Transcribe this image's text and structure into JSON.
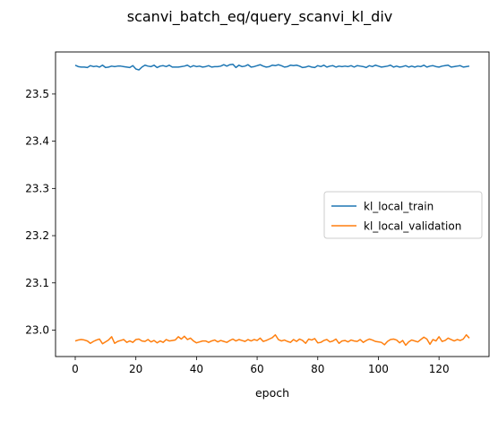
{
  "chart_data": {
    "type": "line",
    "title": "scanvi_batch_eq/query_scanvi_kl_div",
    "xlabel": "epoch",
    "ylabel": "",
    "xlim": [
      -6.5,
      136.5
    ],
    "ylim": [
      22.944,
      23.589
    ],
    "xticks": [
      0,
      20,
      40,
      60,
      80,
      100,
      120
    ],
    "yticks": [
      23.0,
      23.1,
      23.2,
      23.3,
      23.4,
      23.5
    ],
    "ytick_labels": [
      "23.0",
      "23.1",
      "23.2",
      "23.3",
      "23.4",
      "23.5"
    ],
    "grid": false,
    "legend_position": "center-right",
    "x": [
      0,
      1,
      2,
      3,
      4,
      5,
      6,
      7,
      8,
      9,
      10,
      11,
      12,
      13,
      14,
      15,
      16,
      17,
      18,
      19,
      20,
      21,
      22,
      23,
      24,
      25,
      26,
      27,
      28,
      29,
      30,
      31,
      32,
      33,
      34,
      35,
      36,
      37,
      38,
      39,
      40,
      41,
      42,
      43,
      44,
      45,
      46,
      47,
      48,
      49,
      50,
      51,
      52,
      53,
      54,
      55,
      56,
      57,
      58,
      59,
      60,
      61,
      62,
      63,
      64,
      65,
      66,
      67,
      68,
      69,
      70,
      71,
      72,
      73,
      74,
      75,
      76,
      77,
      78,
      79,
      80,
      81,
      82,
      83,
      84,
      85,
      86,
      87,
      88,
      89,
      90,
      91,
      92,
      93,
      94,
      95,
      96,
      97,
      98,
      99,
      100,
      101,
      102,
      103,
      104,
      105,
      106,
      107,
      108,
      109,
      110,
      111,
      112,
      113,
      114,
      115,
      116,
      117,
      118,
      119,
      120,
      121,
      122,
      123,
      124,
      125,
      126,
      127,
      128,
      129,
      130
    ],
    "series": [
      {
        "name": "kl_local_train",
        "color": "#1f77b4",
        "values": [
          23.561,
          23.558,
          23.557,
          23.557,
          23.556,
          23.56,
          23.558,
          23.559,
          23.557,
          23.561,
          23.556,
          23.557,
          23.559,
          23.558,
          23.559,
          23.559,
          23.558,
          23.557,
          23.556,
          23.56,
          23.553,
          23.551,
          23.557,
          23.561,
          23.559,
          23.558,
          23.561,
          23.556,
          23.559,
          23.56,
          23.558,
          23.561,
          23.557,
          23.557,
          23.557,
          23.558,
          23.559,
          23.561,
          23.557,
          23.56,
          23.558,
          23.559,
          23.557,
          23.558,
          23.56,
          23.557,
          23.558,
          23.558,
          23.559,
          23.562,
          23.559,
          23.562,
          23.563,
          23.556,
          23.561,
          23.558,
          23.559,
          23.562,
          23.557,
          23.558,
          23.56,
          23.562,
          23.559,
          23.557,
          23.558,
          23.561,
          23.56,
          23.562,
          23.56,
          23.557,
          23.558,
          23.561,
          23.56,
          23.561,
          23.559,
          23.556,
          23.557,
          23.559,
          23.557,
          23.556,
          23.56,
          23.558,
          23.561,
          23.557,
          23.559,
          23.56,
          23.557,
          23.559,
          23.558,
          23.559,
          23.558,
          23.56,
          23.557,
          23.56,
          23.559,
          23.558,
          23.556,
          23.56,
          23.558,
          23.561,
          23.559,
          23.557,
          23.558,
          23.559,
          23.561,
          23.557,
          23.559,
          23.557,
          23.558,
          23.56,
          23.557,
          23.559,
          23.557,
          23.559,
          23.558,
          23.561,
          23.557,
          23.559,
          23.56,
          23.558,
          23.557,
          23.559,
          23.56,
          23.561,
          23.557,
          23.558,
          23.559,
          23.56,
          23.557,
          23.558,
          23.559
        ]
      },
      {
        "name": "kl_local_validation",
        "color": "#ff7f0e",
        "values": [
          22.977,
          22.979,
          22.98,
          22.979,
          22.977,
          22.972,
          22.976,
          22.979,
          22.981,
          22.971,
          22.975,
          22.979,
          22.986,
          22.972,
          22.976,
          22.978,
          22.98,
          22.974,
          22.977,
          22.974,
          22.98,
          22.981,
          22.977,
          22.976,
          22.98,
          22.975,
          22.978,
          22.973,
          22.977,
          22.974,
          22.98,
          22.977,
          22.978,
          22.979,
          22.986,
          22.981,
          22.987,
          22.98,
          22.983,
          22.977,
          22.973,
          22.975,
          22.977,
          22.977,
          22.974,
          22.977,
          22.979,
          22.975,
          22.978,
          22.976,
          22.974,
          22.978,
          22.981,
          22.977,
          22.98,
          22.978,
          22.976,
          22.98,
          22.977,
          22.98,
          22.978,
          22.983,
          22.976,
          22.978,
          22.981,
          22.984,
          22.99,
          22.98,
          22.977,
          22.979,
          22.976,
          22.974,
          22.98,
          22.976,
          22.981,
          22.978,
          22.972,
          22.981,
          22.979,
          22.982,
          22.973,
          22.974,
          22.978,
          22.98,
          22.975,
          22.977,
          22.981,
          22.972,
          22.977,
          22.978,
          22.975,
          22.979,
          22.977,
          22.976,
          22.98,
          22.974,
          22.978,
          22.981,
          22.979,
          22.976,
          22.975,
          22.974,
          22.969,
          22.976,
          22.98,
          22.981,
          22.979,
          22.973,
          22.978,
          22.968,
          22.975,
          22.979,
          22.977,
          22.975,
          22.98,
          22.985,
          22.981,
          22.97,
          22.98,
          22.977,
          22.986,
          22.976,
          22.978,
          22.983,
          22.98,
          22.977,
          22.98,
          22.978,
          22.981,
          22.99,
          22.983
        ]
      }
    ]
  }
}
